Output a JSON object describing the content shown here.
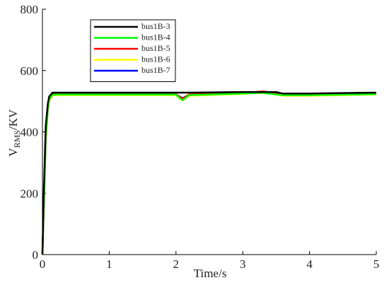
{
  "chart_data": {
    "type": "line",
    "xlabel": "Time/s",
    "ylabel": [
      "V",
      "RMS",
      "/KV"
    ],
    "x": [
      0,
      0.02,
      0.05,
      0.08,
      0.1,
      0.15,
      0.2,
      1,
      2,
      2.05,
      2.1,
      2.2,
      3,
      3.3,
      3.5,
      3.6,
      4,
      5
    ],
    "series": [
      {
        "name": "bus1B-3",
        "color": "#000000",
        "values": [
          0,
          200,
          420,
          490,
          515,
          528,
          528,
          528,
          528,
          528,
          528,
          528,
          530,
          530,
          530,
          525,
          525,
          528
        ]
      },
      {
        "name": "bus1B-4",
        "color": "#00ff00",
        "values": [
          0,
          150,
          380,
          470,
          505,
          520,
          522,
          522,
          522,
          512,
          503,
          520,
          525,
          527,
          522,
          520,
          520,
          523
        ]
      },
      {
        "name": "bus1B-5",
        "color": "#ff0000",
        "values": [
          0,
          170,
          390,
          475,
          508,
          522,
          523,
          523,
          523,
          515,
          508,
          522,
          526,
          532,
          526,
          520,
          520,
          523
        ]
      },
      {
        "name": "bus1B-6",
        "color": "#ffff00",
        "values": [
          0,
          140,
          370,
          465,
          500,
          518,
          520,
          520,
          520,
          510,
          502,
          518,
          524,
          528,
          522,
          518,
          518,
          522
        ]
      },
      {
        "name": "bus1B-7",
        "color": "#0000ff",
        "values": [
          0,
          160,
          385,
          472,
          506,
          521,
          522,
          522,
          522,
          516,
          510,
          521,
          525,
          529,
          524,
          520,
          520,
          523
        ]
      }
    ],
    "xlim": [
      0,
      5
    ],
    "xticks": [
      0,
      1,
      2,
      3,
      4,
      5
    ],
    "ylim": [
      0,
      800
    ],
    "yticks": [
      0,
      200,
      400,
      600,
      800
    ]
  }
}
